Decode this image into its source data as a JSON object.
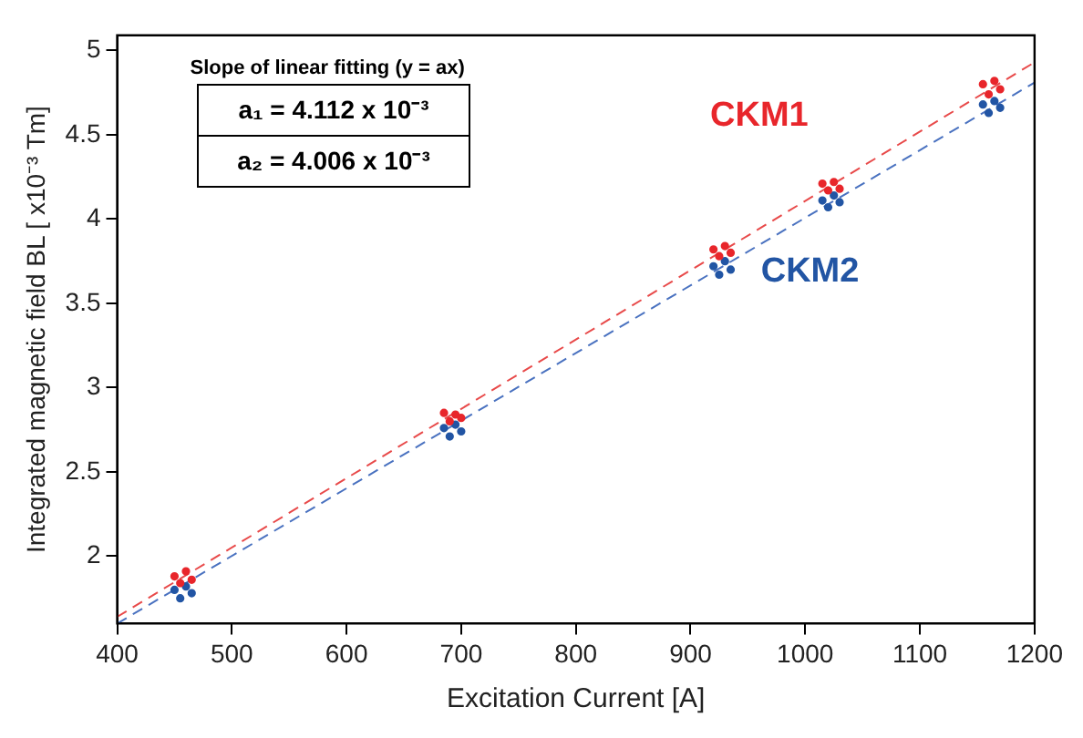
{
  "chart_data": {
    "type": "scatter",
    "xlabel": "Excitation Current [A]",
    "ylabel": "Integrated magnetic field BL [ x10⁻³ Tm]",
    "xlim": [
      400,
      1200
    ],
    "xticks": [
      400,
      500,
      600,
      700,
      800,
      900,
      1000,
      1100,
      1200
    ],
    "ylim": [
      1.6,
      5.09
    ],
    "yticks": [
      2,
      2.5,
      3,
      3.5,
      4,
      4.5,
      5
    ],
    "grid": false,
    "legend": false,
    "annotations": [
      "Slope of linear fitting (y = ax)",
      "a₁ = 4.112 x 10⁻³",
      "a₂ = 4.006 x 10⁻³"
    ],
    "series": [
      {
        "name": "CKM1",
        "type": "scatter",
        "marker": "circle",
        "color": "#e8262b",
        "x": [
          450,
          455,
          460,
          465,
          685,
          690,
          695,
          700,
          920,
          925,
          930,
          935,
          1015,
          1020,
          1025,
          1030,
          1155,
          1160,
          1165,
          1170
        ],
        "values": [
          1.88,
          1.84,
          1.91,
          1.86,
          2.85,
          2.8,
          2.84,
          2.82,
          3.82,
          3.78,
          3.84,
          3.8,
          4.21,
          4.17,
          4.22,
          4.18,
          4.8,
          4.74,
          4.82,
          4.77
        ]
      },
      {
        "name": "CKM2",
        "type": "scatter",
        "marker": "circle",
        "color": "#2255a4",
        "x": [
          450,
          455,
          460,
          465,
          685,
          690,
          695,
          700,
          920,
          925,
          930,
          935,
          1015,
          1020,
          1025,
          1030,
          1155,
          1160,
          1165,
          1170
        ],
        "values": [
          1.8,
          1.75,
          1.82,
          1.78,
          2.76,
          2.71,
          2.78,
          2.74,
          3.72,
          3.67,
          3.75,
          3.7,
          4.11,
          4.07,
          4.14,
          4.1,
          4.68,
          4.63,
          4.7,
          4.66
        ]
      },
      {
        "type": "line",
        "marker": "none",
        "color": "#e84a4a",
        "line_style": "dashed",
        "x": [
          400,
          1200
        ],
        "values": [
          1.64,
          4.93
        ]
      },
      {
        "type": "line",
        "marker": "none",
        "color": "#4a72c0",
        "line_style": "dashed",
        "x": [
          400,
          1200
        ],
        "values": [
          1.6,
          4.81
        ]
      }
    ]
  }
}
